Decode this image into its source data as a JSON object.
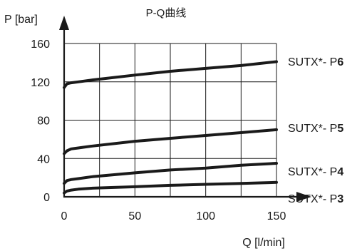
{
  "chart_data": {
    "type": "line",
    "title": "P-Q曲线",
    "xlabel": "Q [l/min]",
    "ylabel": "P [bar]",
    "xlim": [
      0,
      150
    ],
    "ylim": [
      0,
      160
    ],
    "x_ticks": [
      0,
      50,
      100,
      150
    ],
    "y_ticks": [
      0,
      40,
      80,
      120,
      160
    ],
    "x_tick_labels": [
      "0",
      "50",
      "100",
      "150"
    ],
    "y_tick_labels": [
      "0",
      "40",
      "80",
      "120",
      "160"
    ],
    "grid": true,
    "legend": "right-of-curves",
    "series": [
      {
        "name": "SUTX*- P6",
        "label_prefix": "SUTX*- P",
        "label_suffix": "6",
        "x": [
          0,
          2,
          5,
          10,
          20,
          50,
          75,
          100,
          125,
          150
        ],
        "y": [
          114,
          118,
          119,
          120,
          122,
          127,
          131,
          134,
          137,
          141
        ]
      },
      {
        "name": "SUTX*- P5",
        "label_prefix": "SUTX*- P",
        "label_suffix": "5",
        "x": [
          0,
          2,
          5,
          10,
          20,
          50,
          75,
          100,
          125,
          150
        ],
        "y": [
          45,
          48,
          50,
          51,
          53,
          58,
          61,
          64,
          67,
          70
        ]
      },
      {
        "name": "SUTX*- P4",
        "label_prefix": "SUTX*- P",
        "label_suffix": "4",
        "x": [
          0,
          2,
          5,
          10,
          20,
          50,
          75,
          100,
          125,
          150
        ],
        "y": [
          14,
          17,
          18,
          19,
          21,
          25,
          28,
          30,
          33,
          35
        ]
      },
      {
        "name": "SUTX*- P3",
        "label_prefix": "SUTX*- P",
        "label_suffix": "3",
        "x": [
          0,
          2,
          5,
          10,
          20,
          50,
          75,
          100,
          125,
          150
        ],
        "y": [
          4,
          6,
          7,
          8,
          9,
          10.5,
          12,
          13,
          14,
          15
        ]
      }
    ]
  }
}
